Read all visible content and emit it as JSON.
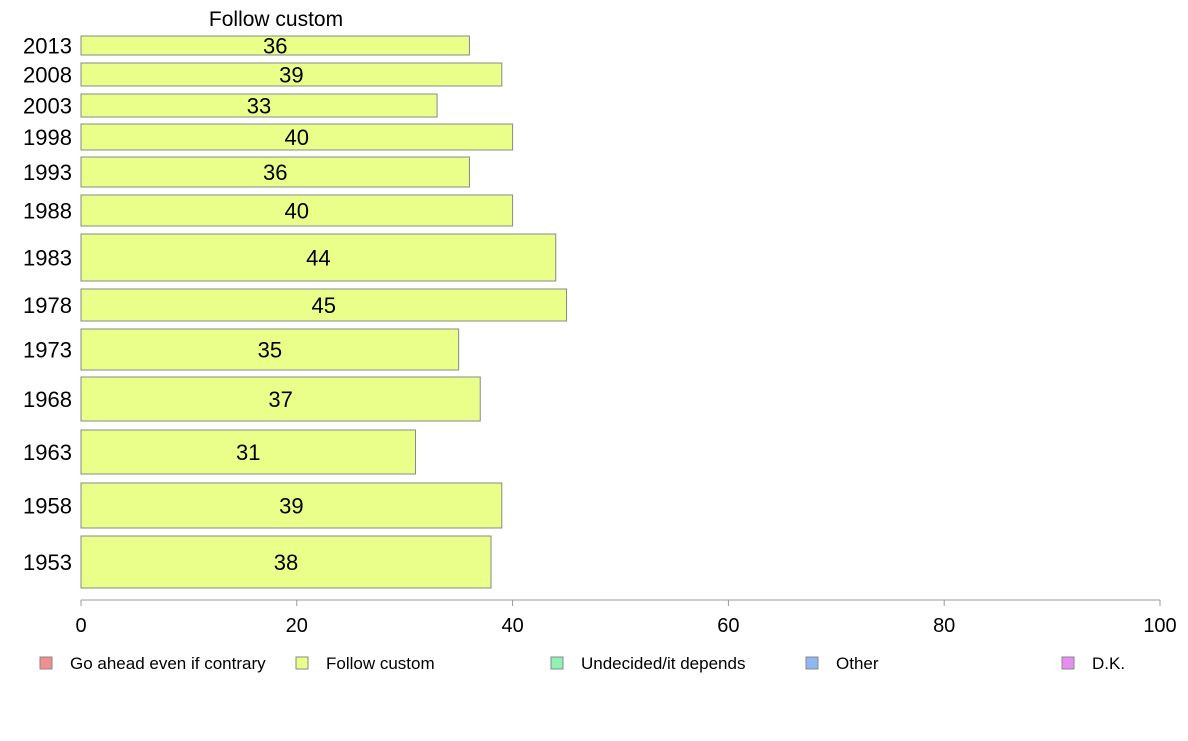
{
  "chart_data": {
    "type": "bar",
    "orientation": "horizontal",
    "title": "Follow custom",
    "categories": [
      "2013",
      "2008",
      "2003",
      "1998",
      "1993",
      "1988",
      "1983",
      "1978",
      "1973",
      "1968",
      "1963",
      "1958",
      "1953"
    ],
    "series": [
      {
        "name": "Follow custom",
        "values": [
          36,
          39,
          33,
          40,
          36,
          40,
          44,
          45,
          35,
          37,
          31,
          39,
          38
        ],
        "color": "#eaff8a"
      }
    ],
    "xlim": [
      0,
      100
    ],
    "xticks": [
      0,
      20,
      40,
      60,
      80,
      100
    ],
    "grid": false,
    "legend": {
      "placement": "bottom",
      "items": [
        {
          "label": "Go ahead even if contrary",
          "color": "#f28e8e"
        },
        {
          "label": "Follow custom",
          "color": "#eaff8a"
        },
        {
          "label": "Undecided/it depends",
          "color": "#8ef2b5"
        },
        {
          "label": "Other",
          "color": "#8eb8f2"
        },
        {
          "label": "D.K.",
          "color": "#e88ef2"
        }
      ]
    }
  }
}
